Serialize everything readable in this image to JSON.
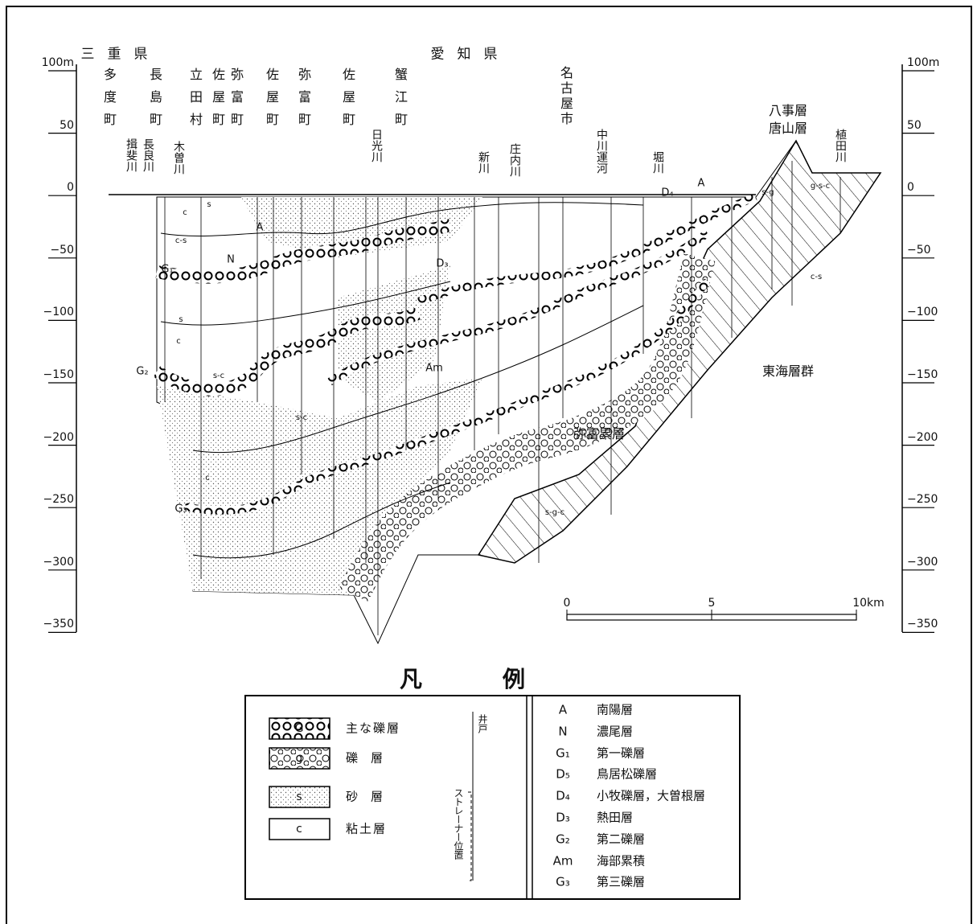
{
  "prefectures": [
    "三重県",
    "愛知県"
  ],
  "towns": [
    "多度町",
    "長島町",
    "立田村",
    "佐屋町",
    "弥富町",
    "佐屋町",
    "弥富町",
    "佐屋町",
    "蟹江町",
    "名古屋市"
  ],
  "rivers": [
    "揖斐川",
    "長良川",
    "木曽川",
    "日光川",
    "新川",
    "庄内川",
    "中川運河",
    "堀川",
    "植田川"
  ],
  "depth_scale": [
    "100m",
    "50",
    "0",
    "−50",
    "−100",
    "−150",
    "−200",
    "−250",
    "−300",
    "−350"
  ],
  "formations": [
    "八事層",
    "唐山層",
    "東海層群",
    "弥富累層"
  ],
  "section_marks": [
    "A",
    "N",
    "G₁",
    "D₃",
    "G₂",
    "Am",
    "G₃",
    "D₄",
    "A"
  ],
  "lithology_marks": [
    "s",
    "c",
    "c-s",
    "s-c",
    "s",
    "c",
    "s-c",
    "c",
    "s-g-c",
    "g-s-c",
    "c-s",
    "s-g"
  ],
  "distance_scale": [
    "0",
    "5",
    "10km"
  ],
  "legend": {
    "title": "凡例",
    "items": [
      {
        "symbol": "G",
        "label": "主な礫層"
      },
      {
        "symbol": "g",
        "label": "礫層"
      },
      {
        "symbol": "s",
        "label": "砂層"
      },
      {
        "symbol": "c",
        "label": "粘土層"
      }
    ],
    "well": "井戸",
    "strainer": "ストレーナー位置",
    "units": [
      {
        "code": "A",
        "name": "南陽層"
      },
      {
        "code": "N",
        "name": "濃尾層"
      },
      {
        "code": "G₁",
        "name": "第一礫層"
      },
      {
        "code": "D₅",
        "name": "鳥居松礫層"
      },
      {
        "code": "D₄",
        "name": "小牧礫層，大曽根層"
      },
      {
        "code": "D₃",
        "name": "熱田層"
      },
      {
        "code": "G₂",
        "name": "第二礫層"
      },
      {
        "code": "Am",
        "name": "海部累積"
      },
      {
        "code": "G₃",
        "name": "第三礫層"
      }
    ]
  }
}
